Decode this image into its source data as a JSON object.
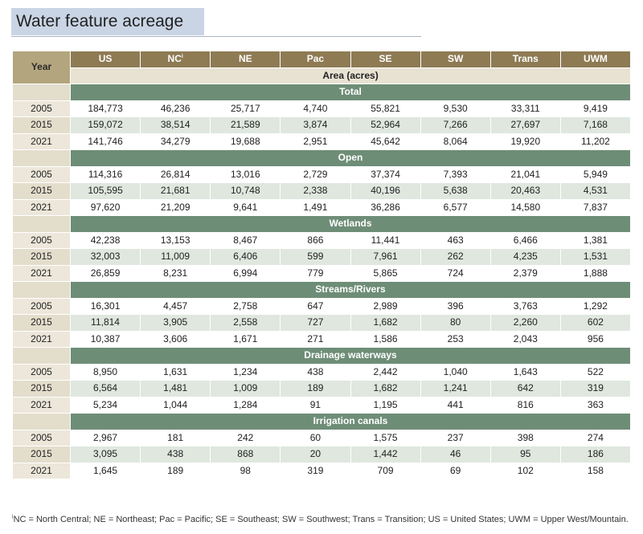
{
  "title": "Water feature acreage",
  "table": {
    "year_header": "Year",
    "columns": [
      "US",
      "NC",
      "NE",
      "Pac",
      "SE",
      "SW",
      "Trans",
      "UWM"
    ],
    "nc_superscript": "i",
    "area_label": "Area (acres)",
    "sections": [
      {
        "name": "Total",
        "rows": [
          {
            "year": "2005",
            "values": [
              "184,773",
              "46,236",
              "25,717",
              "4,740",
              "55,821",
              "9,530",
              "33,311",
              "9,419"
            ]
          },
          {
            "year": "2015",
            "values": [
              "159,072",
              "38,514",
              "21,589",
              "3,874",
              "52,964",
              "7,266",
              "27,697",
              "7,168"
            ]
          },
          {
            "year": "2021",
            "values": [
              "141,746",
              "34,279",
              "19,688",
              "2,951",
              "45,642",
              "8,064",
              "19,920",
              "11,202"
            ]
          }
        ]
      },
      {
        "name": "Open",
        "rows": [
          {
            "year": "2005",
            "values": [
              "114,316",
              "26,814",
              "13,016",
              "2,729",
              "37,374",
              "7,393",
              "21,041",
              "5,949"
            ]
          },
          {
            "year": "2015",
            "values": [
              "105,595",
              "21,681",
              "10,748",
              "2,338",
              "40,196",
              "5,638",
              "20,463",
              "4,531"
            ]
          },
          {
            "year": "2021",
            "values": [
              "97,620",
              "21,209",
              "9,641",
              "1,491",
              "36,286",
              "6,577",
              "14,580",
              "7,837"
            ]
          }
        ]
      },
      {
        "name": "Wetlands",
        "rows": [
          {
            "year": "2005",
            "values": [
              "42,238",
              "13,153",
              "8,467",
              "866",
              "11,441",
              "463",
              "6,466",
              "1,381"
            ]
          },
          {
            "year": "2015",
            "values": [
              "32,003",
              "11,009",
              "6,406",
              "599",
              "7,961",
              "262",
              "4,235",
              "1,531"
            ]
          },
          {
            "year": "2021",
            "values": [
              "26,859",
              "8,231",
              "6,994",
              "779",
              "5,865",
              "724",
              "2,379",
              "1,888"
            ]
          }
        ]
      },
      {
        "name": "Streams/Rivers",
        "rows": [
          {
            "year": "2005",
            "values": [
              "16,301",
              "4,457",
              "2,758",
              "647",
              "2,989",
              "396",
              "3,763",
              "1,292"
            ]
          },
          {
            "year": "2015",
            "values": [
              "11,814",
              "3,905",
              "2,558",
              "727",
              "1,682",
              "80",
              "2,260",
              "602"
            ]
          },
          {
            "year": "2021",
            "values": [
              "10,387",
              "3,606",
              "1,671",
              "271",
              "1,586",
              "253",
              "2,043",
              "956"
            ]
          }
        ]
      },
      {
        "name": "Drainage waterways",
        "rows": [
          {
            "year": "2005",
            "values": [
              "8,950",
              "1,631",
              "1,234",
              "438",
              "2,442",
              "1,040",
              "1,643",
              "522"
            ]
          },
          {
            "year": "2015",
            "values": [
              "6,564",
              "1,481",
              "1,009",
              "189",
              "1,682",
              "1,241",
              "642",
              "319"
            ]
          },
          {
            "year": "2021",
            "values": [
              "5,234",
              "1,044",
              "1,284",
              "91",
              "1,195",
              "441",
              "816",
              "363"
            ]
          }
        ]
      },
      {
        "name": "Irrigation canals",
        "rows": [
          {
            "year": "2005",
            "values": [
              "2,967",
              "181",
              "242",
              "60",
              "1,575",
              "237",
              "398",
              "274"
            ]
          },
          {
            "year": "2015",
            "values": [
              "3,095",
              "438",
              "868",
              "20",
              "1,442",
              "46",
              "95",
              "186"
            ]
          },
          {
            "year": "2021",
            "values": [
              "1,645",
              "189",
              "98",
              "319",
              "709",
              "69",
              "102",
              "158"
            ]
          }
        ]
      }
    ]
  },
  "footnote": {
    "marker": "i",
    "text": "NC = North Central; NE = Northeast; Pac = Pacific; SE = Southeast; SW = Southwest; Trans = Transition; US = United States; UWM = Upper West/Mountain."
  },
  "colors": {
    "header_brown": "#8e7b54",
    "year_header": "#b3a57d",
    "section_green": "#6e8d77",
    "title_box": "#c9d5e5"
  }
}
